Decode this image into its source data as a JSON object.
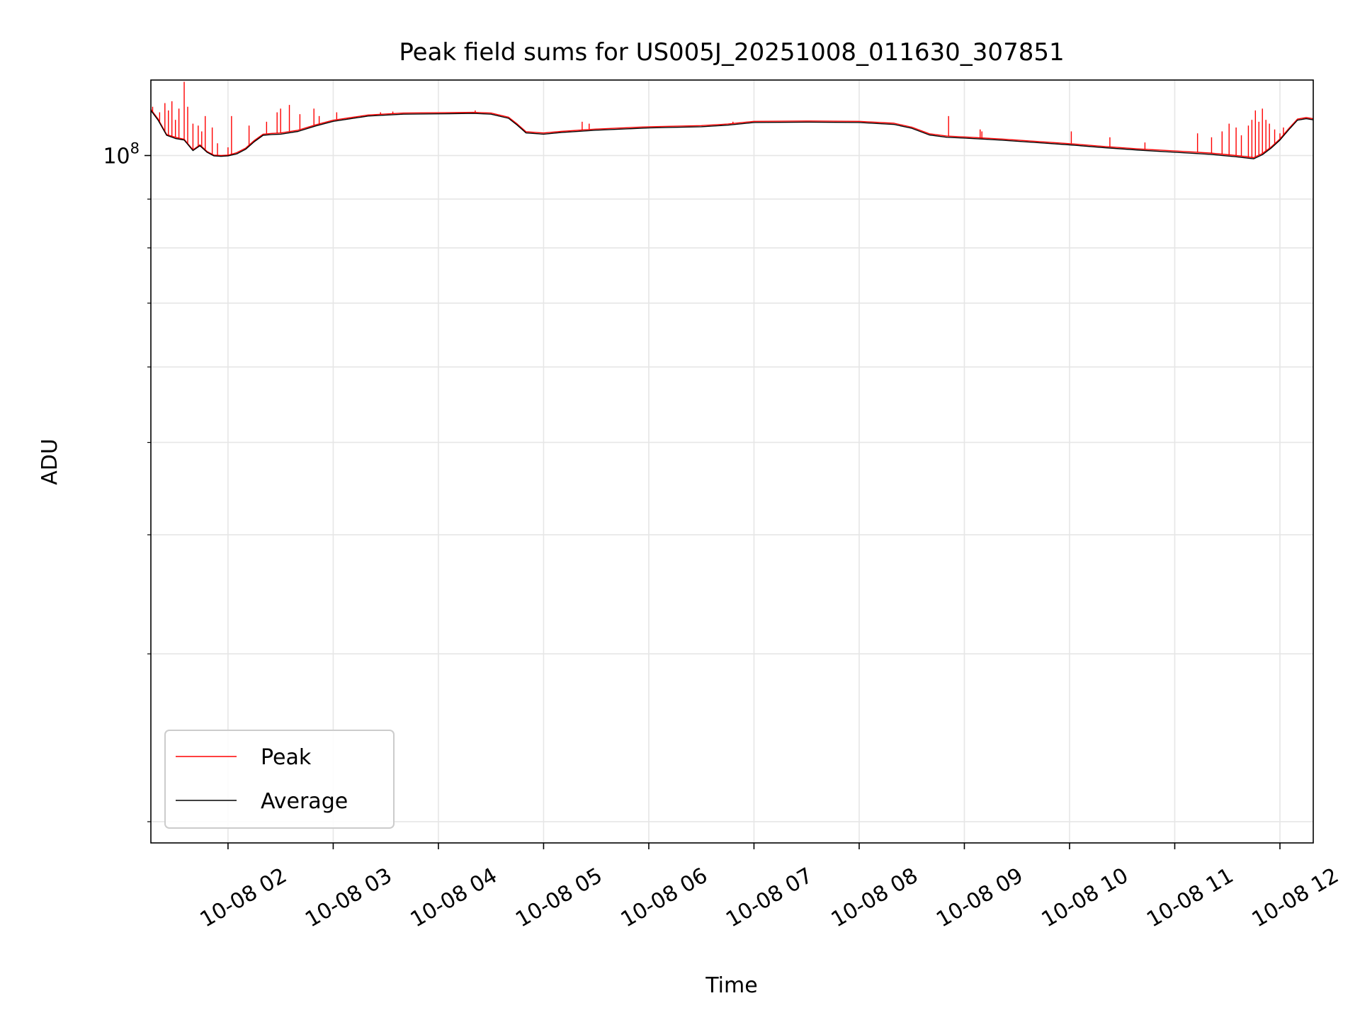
{
  "chart_data": {
    "type": "line",
    "title": "Peak field sums for US005J_20251008_011630_307851",
    "xlabel": "Time",
    "ylabel": "ADU",
    "y_scale": "log",
    "y_tick_label": {
      "base": "10",
      "exp": "8",
      "value": 100000000
    },
    "x_tick_labels": [
      "10-08 02",
      "10-08 03",
      "10-08 04",
      "10-08 05",
      "10-08 06",
      "10-08 07",
      "10-08 08",
      "10-08 09",
      "10-08 10",
      "10-08 11",
      "10-08 12"
    ],
    "x_tick_times": [
      "2025-10-08 02:00",
      "2025-10-08 03:00",
      "2025-10-08 04:00",
      "2025-10-08 05:00",
      "2025-10-08 06:00",
      "2025-10-08 07:00",
      "2025-10-08 08:00",
      "2025-10-08 09:00",
      "2025-10-08 10:00",
      "2025-10-08 11:00",
      "2025-10-08 12:00"
    ],
    "xlim": [
      "2025-10-08 01:16",
      "2025-10-08 12:19"
    ],
    "ylim": [
      19000000,
      120000000
    ],
    "grid": true,
    "legend": {
      "position": "lower-left"
    },
    "series": [
      {
        "name": "Average",
        "color": "#000000",
        "points": [
          [
            "2025-10-08 01:16",
            111500000
          ],
          [
            "2025-10-08 01:20",
            109000000
          ],
          [
            "2025-10-08 01:25",
            105000000
          ],
          [
            "2025-10-08 01:30",
            104200000
          ],
          [
            "2025-10-08 01:35",
            103800000
          ],
          [
            "2025-10-08 01:40",
            101200000
          ],
          [
            "2025-10-08 01:44",
            102400000
          ],
          [
            "2025-10-08 01:48",
            100800000
          ],
          [
            "2025-10-08 01:52",
            99900000
          ],
          [
            "2025-10-08 01:56",
            99800000
          ],
          [
            "2025-10-08 02:00",
            99900000
          ],
          [
            "2025-10-08 02:05",
            100400000
          ],
          [
            "2025-10-08 02:10",
            101500000
          ],
          [
            "2025-10-08 02:15",
            103400000
          ],
          [
            "2025-10-08 02:20",
            105000000
          ],
          [
            "2025-10-08 02:25",
            105200000
          ],
          [
            "2025-10-08 02:30",
            105300000
          ],
          [
            "2025-10-08 02:40",
            106000000
          ],
          [
            "2025-10-08 02:50",
            107400000
          ],
          [
            "2025-10-08 03:00",
            108600000
          ],
          [
            "2025-10-08 03:10",
            109300000
          ],
          [
            "2025-10-08 03:20",
            110000000
          ],
          [
            "2025-10-08 03:40",
            110500000
          ],
          [
            "2025-10-08 04:00",
            110600000
          ],
          [
            "2025-10-08 04:20",
            110700000
          ],
          [
            "2025-10-08 04:30",
            110500000
          ],
          [
            "2025-10-08 04:40",
            109400000
          ],
          [
            "2025-10-08 04:45",
            107600000
          ],
          [
            "2025-10-08 04:50",
            105600000
          ],
          [
            "2025-10-08 05:00",
            105300000
          ],
          [
            "2025-10-08 05:10",
            105700000
          ],
          [
            "2025-10-08 05:30",
            106300000
          ],
          [
            "2025-10-08 06:00",
            106900000
          ],
          [
            "2025-10-08 06:30",
            107200000
          ],
          [
            "2025-10-08 06:45",
            107600000
          ],
          [
            "2025-10-08 07:00",
            108300000
          ],
          [
            "2025-10-08 07:30",
            108400000
          ],
          [
            "2025-10-08 08:00",
            108300000
          ],
          [
            "2025-10-08 08:20",
            107800000
          ],
          [
            "2025-10-08 08:30",
            106800000
          ],
          [
            "2025-10-08 08:40",
            105100000
          ],
          [
            "2025-10-08 08:50",
            104500000
          ],
          [
            "2025-10-08 09:00",
            104300000
          ],
          [
            "2025-10-08 09:20",
            103800000
          ],
          [
            "2025-10-08 09:40",
            103200000
          ],
          [
            "2025-10-08 10:00",
            102600000
          ],
          [
            "2025-10-08 10:20",
            101900000
          ],
          [
            "2025-10-08 10:40",
            101300000
          ],
          [
            "2025-10-08 11:00",
            100800000
          ],
          [
            "2025-10-08 11:20",
            100300000
          ],
          [
            "2025-10-08 11:35",
            99700000
          ],
          [
            "2025-10-08 11:45",
            99200000
          ],
          [
            "2025-10-08 11:50",
            100200000
          ],
          [
            "2025-10-08 11:55",
            101800000
          ],
          [
            "2025-10-08 12:00",
            103800000
          ],
          [
            "2025-10-08 12:05",
            106400000
          ],
          [
            "2025-10-08 12:10",
            108900000
          ],
          [
            "2025-10-08 12:15",
            109300000
          ],
          [
            "2025-10-08 12:19",
            109000000
          ]
        ]
      },
      {
        "name": "Peak",
        "color": "#ff0000",
        "points": [
          [
            "2025-10-08 01:16",
            111800000
          ],
          [
            "2025-10-08 01:20",
            109300000
          ],
          [
            "2025-10-08 01:25",
            105200000
          ],
          [
            "2025-10-08 01:30",
            104500000
          ],
          [
            "2025-10-08 01:35",
            104000000
          ],
          [
            "2025-10-08 01:40",
            101400000
          ],
          [
            "2025-10-08 01:44",
            102600000
          ],
          [
            "2025-10-08 01:48",
            101000000
          ],
          [
            "2025-10-08 01:52",
            100100000
          ],
          [
            "2025-10-08 01:56",
            100000000
          ],
          [
            "2025-10-08 02:00",
            100100000
          ],
          [
            "2025-10-08 02:05",
            100700000
          ],
          [
            "2025-10-08 02:10",
            101800000
          ],
          [
            "2025-10-08 02:15",
            103700000
          ],
          [
            "2025-10-08 02:20",
            105300000
          ],
          [
            "2025-10-08 02:25",
            105500000
          ],
          [
            "2025-10-08 02:30",
            105600000
          ],
          [
            "2025-10-08 02:40",
            106300000
          ],
          [
            "2025-10-08 02:50",
            107700000
          ],
          [
            "2025-10-08 03:00",
            108900000
          ],
          [
            "2025-10-08 03:10",
            109600000
          ],
          [
            "2025-10-08 03:20",
            110300000
          ],
          [
            "2025-10-08 03:40",
            110800000
          ],
          [
            "2025-10-08 04:00",
            110900000
          ],
          [
            "2025-10-08 04:20",
            111000000
          ],
          [
            "2025-10-08 04:30",
            110800000
          ],
          [
            "2025-10-08 04:40",
            109700000
          ],
          [
            "2025-10-08 04:45",
            107900000
          ],
          [
            "2025-10-08 04:50",
            105900000
          ],
          [
            "2025-10-08 05:00",
            105600000
          ],
          [
            "2025-10-08 05:10",
            106000000
          ],
          [
            "2025-10-08 05:30",
            106600000
          ],
          [
            "2025-10-08 06:00",
            107200000
          ],
          [
            "2025-10-08 06:30",
            107500000
          ],
          [
            "2025-10-08 06:45",
            107900000
          ],
          [
            "2025-10-08 07:00",
            108600000
          ],
          [
            "2025-10-08 07:30",
            108700000
          ],
          [
            "2025-10-08 08:00",
            108600000
          ],
          [
            "2025-10-08 08:20",
            108100000
          ],
          [
            "2025-10-08 08:30",
            107100000
          ],
          [
            "2025-10-08 08:40",
            105400000
          ],
          [
            "2025-10-08 08:50",
            104800000
          ],
          [
            "2025-10-08 09:00",
            104600000
          ],
          [
            "2025-10-08 09:20",
            104100000
          ],
          [
            "2025-10-08 09:40",
            103500000
          ],
          [
            "2025-10-08 10:00",
            102900000
          ],
          [
            "2025-10-08 10:20",
            102200000
          ],
          [
            "2025-10-08 10:40",
            101600000
          ],
          [
            "2025-10-08 11:00",
            101100000
          ],
          [
            "2025-10-08 11:20",
            100600000
          ],
          [
            "2025-10-08 11:35",
            100000000
          ],
          [
            "2025-10-08 11:45",
            99500000
          ],
          [
            "2025-10-08 11:50",
            100500000
          ],
          [
            "2025-10-08 11:55",
            102100000
          ],
          [
            "2025-10-08 12:00",
            104100000
          ],
          [
            "2025-10-08 12:05",
            106700000
          ],
          [
            "2025-10-08 12:10",
            109200000
          ],
          [
            "2025-10-08 12:15",
            109600000
          ],
          [
            "2025-10-08 12:19",
            109300000
          ]
        ],
        "spikes": [
          [
            "2025-10-08 01:17",
            112500000
          ],
          [
            "2025-10-08 01:21",
            111000000
          ],
          [
            "2025-10-08 01:24",
            113500000
          ],
          [
            "2025-10-08 01:26",
            111500000
          ],
          [
            "2025-10-08 01:28",
            114000000
          ],
          [
            "2025-10-08 01:30",
            109000000
          ],
          [
            "2025-10-08 01:32",
            112000000
          ],
          [
            "2025-10-08 01:35",
            119500000
          ],
          [
            "2025-10-08 01:37",
            112500000
          ],
          [
            "2025-10-08 01:40",
            108000000
          ],
          [
            "2025-10-08 01:43",
            107500000
          ],
          [
            "2025-10-08 01:45",
            106000000
          ],
          [
            "2025-10-08 01:47",
            110000000
          ],
          [
            "2025-10-08 01:51",
            107000000
          ],
          [
            "2025-10-08 01:54",
            103000000
          ],
          [
            "2025-10-08 02:00",
            102000000
          ],
          [
            "2025-10-08 02:02",
            110000000
          ],
          [
            "2025-10-08 02:12",
            107500000
          ],
          [
            "2025-10-08 02:22",
            108500000
          ],
          [
            "2025-10-08 02:28",
            111000000
          ],
          [
            "2025-10-08 02:30",
            112000000
          ],
          [
            "2025-10-08 02:35",
            113000000
          ],
          [
            "2025-10-08 02:41",
            110500000
          ],
          [
            "2025-10-08 02:49",
            112000000
          ],
          [
            "2025-10-08 02:52",
            110000000
          ],
          [
            "2025-10-08 03:02",
            111000000
          ],
          [
            "2025-10-08 03:27",
            111000000
          ],
          [
            "2025-10-08 03:34",
            111200000
          ],
          [
            "2025-10-08 04:21",
            111500000
          ],
          [
            "2025-10-08 05:22",
            108500000
          ],
          [
            "2025-10-08 05:26",
            108000000
          ],
          [
            "2025-10-08 06:48",
            108500000
          ],
          [
            "2025-10-08 08:51",
            110000000
          ],
          [
            "2025-10-08 09:09",
            106500000
          ],
          [
            "2025-10-08 09:10",
            106000000
          ],
          [
            "2025-10-08 10:01",
            106000000
          ],
          [
            "2025-10-08 10:23",
            104500000
          ],
          [
            "2025-10-08 10:43",
            103200000
          ],
          [
            "2025-10-08 11:13",
            105500000
          ],
          [
            "2025-10-08 11:21",
            104500000
          ],
          [
            "2025-10-08 11:27",
            106000000
          ],
          [
            "2025-10-08 11:31",
            108000000
          ],
          [
            "2025-10-08 11:35",
            107000000
          ],
          [
            "2025-10-08 11:38",
            105000000
          ],
          [
            "2025-10-08 11:42",
            107500000
          ],
          [
            "2025-10-08 11:44",
            109000000
          ],
          [
            "2025-10-08 11:46",
            111500000
          ],
          [
            "2025-10-08 11:48",
            108500000
          ],
          [
            "2025-10-08 11:50",
            112000000
          ],
          [
            "2025-10-08 11:52",
            109000000
          ],
          [
            "2025-10-08 11:54",
            108000000
          ],
          [
            "2025-10-08 11:57",
            106500000
          ],
          [
            "2025-10-08 12:00",
            105500000
          ],
          [
            "2025-10-08 12:02",
            107000000
          ]
        ]
      }
    ]
  }
}
